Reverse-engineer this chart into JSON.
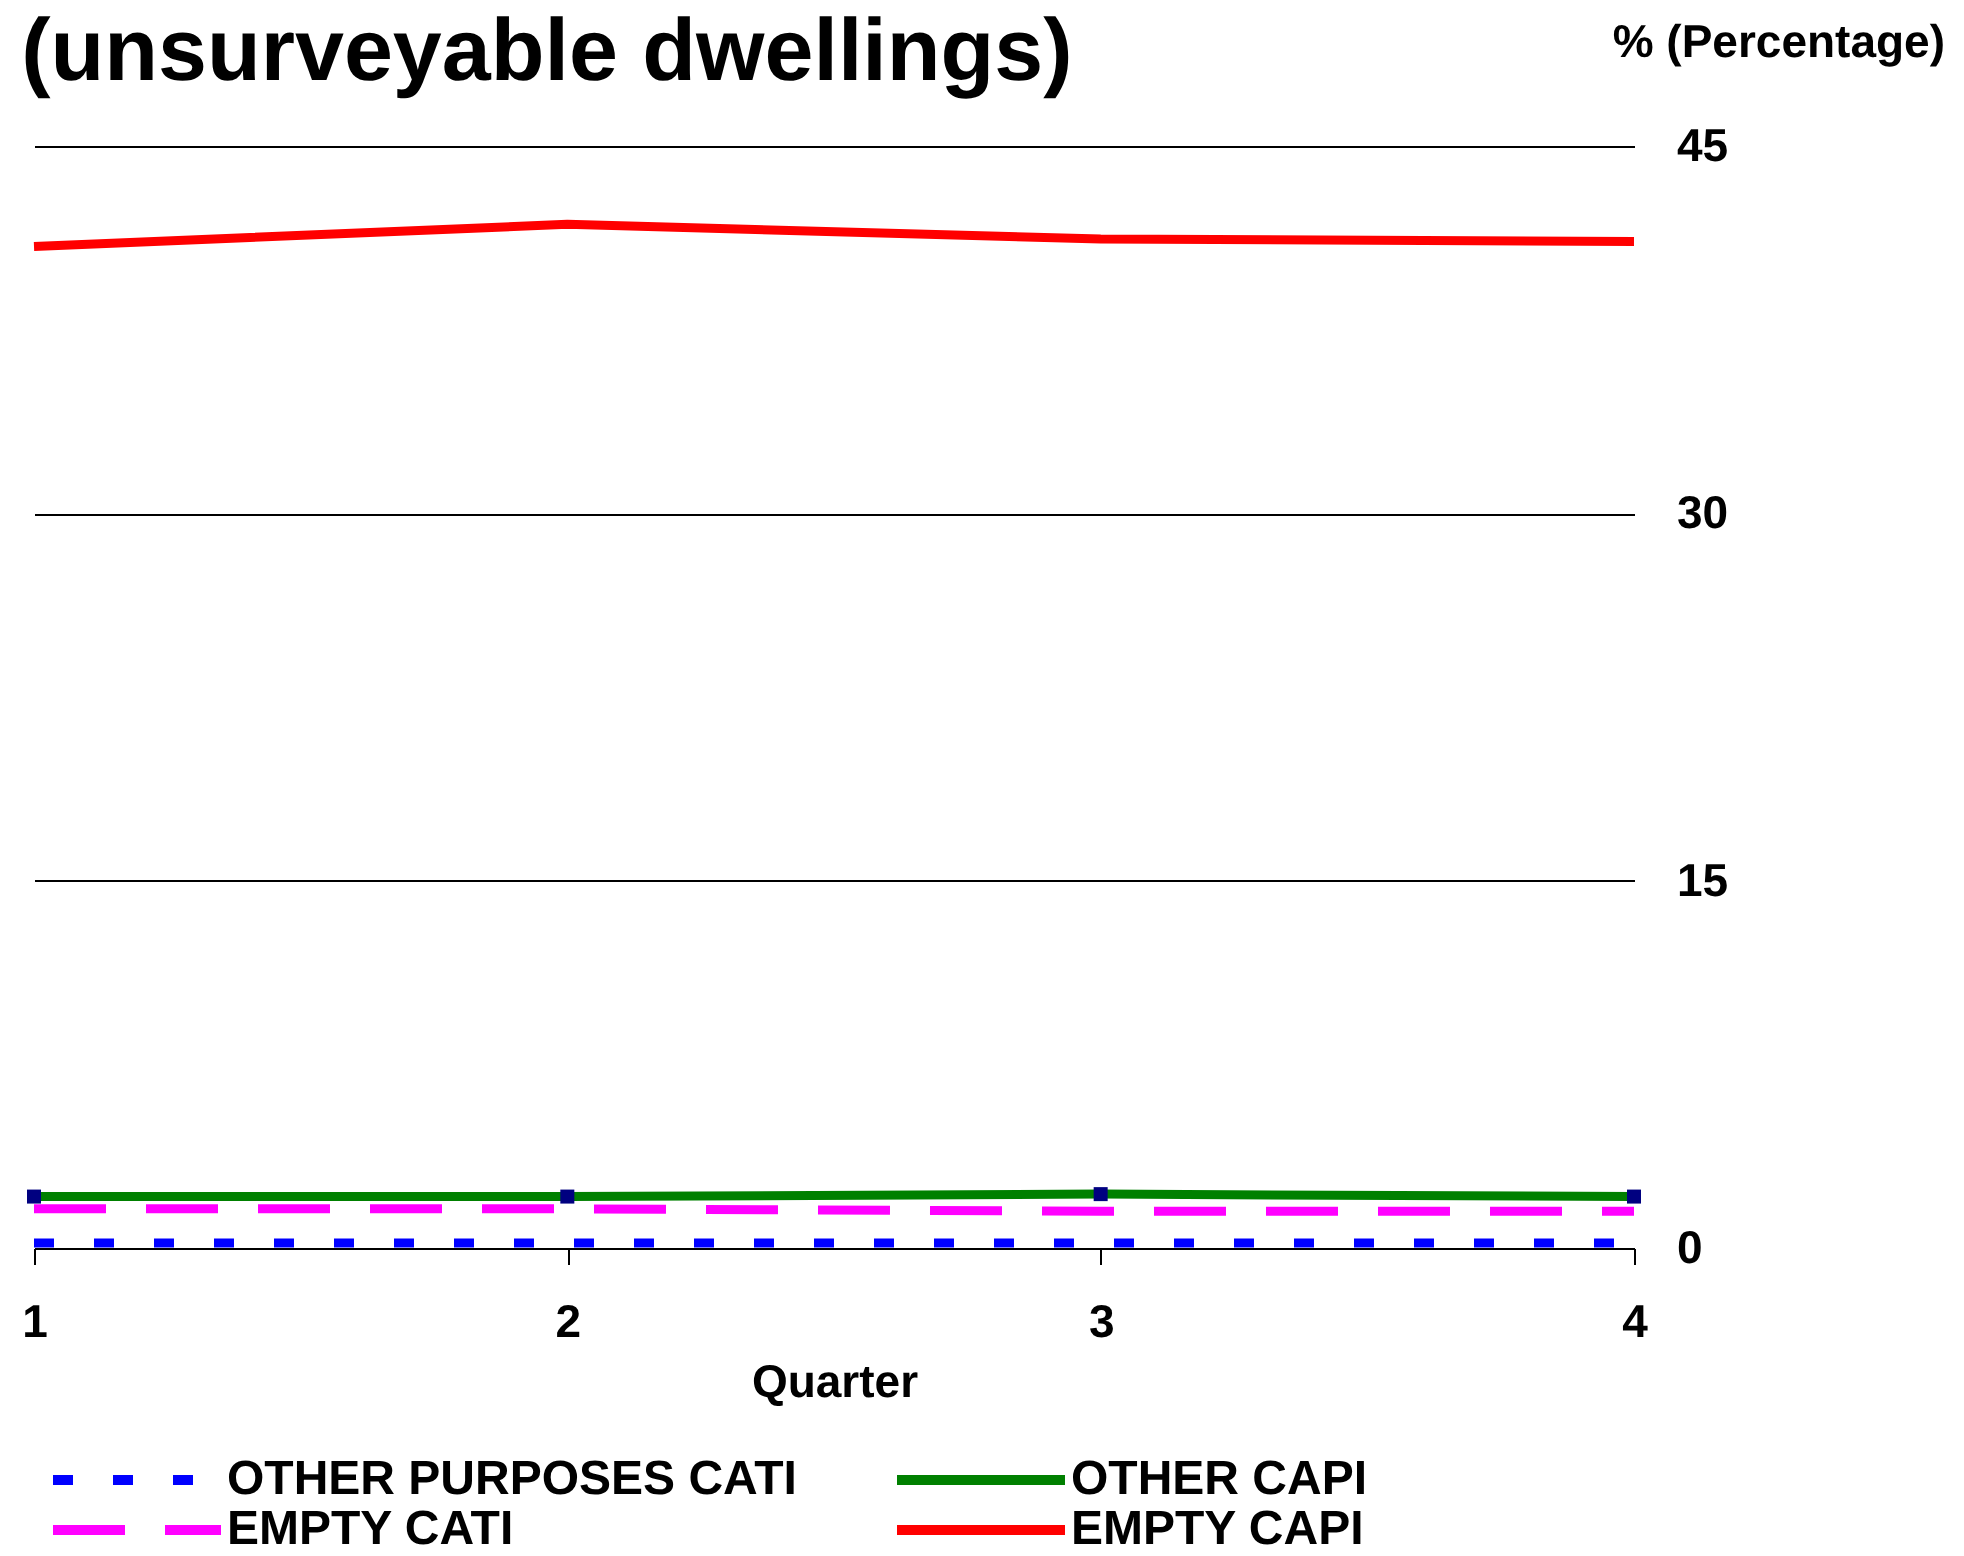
{
  "chart_data": {
    "type": "line",
    "title": "(unsurveyable dwellings)",
    "xlabel": "Quarter",
    "ylabel": "% (Percentage)",
    "categories": [
      "1",
      "2",
      "3",
      "4"
    ],
    "series": [
      {
        "name": "OTHER PURPOSES CATI",
        "color": "#0000ff",
        "line_style": "dotted",
        "values": [
          0.2,
          0.2,
          0.2,
          0.2
        ]
      },
      {
        "name": "OTHER CAPI",
        "color": "#008000",
        "line_style": "solid",
        "marker": "square",
        "colors": [
          "#000080",
          "#000080",
          "#000080",
          "#000080"
        ],
        "values": [
          2.1,
          2.1,
          2.2,
          2.1
        ]
      },
      {
        "name": "EMPTY CATI",
        "color": "#ff00ff",
        "line_style": "dashed",
        "values": [
          1.6,
          1.6,
          1.5,
          1.5
        ]
      },
      {
        "name": "EMPTY CAPI",
        "color": "#ff0000",
        "line_style": "solid",
        "values": [
          40.9,
          41.8,
          41.2,
          41.1
        ]
      }
    ],
    "ylim": [
      0,
      45
    ],
    "yticks": [
      0,
      15,
      30,
      45
    ],
    "grid": "y",
    "legend": "bottom"
  }
}
